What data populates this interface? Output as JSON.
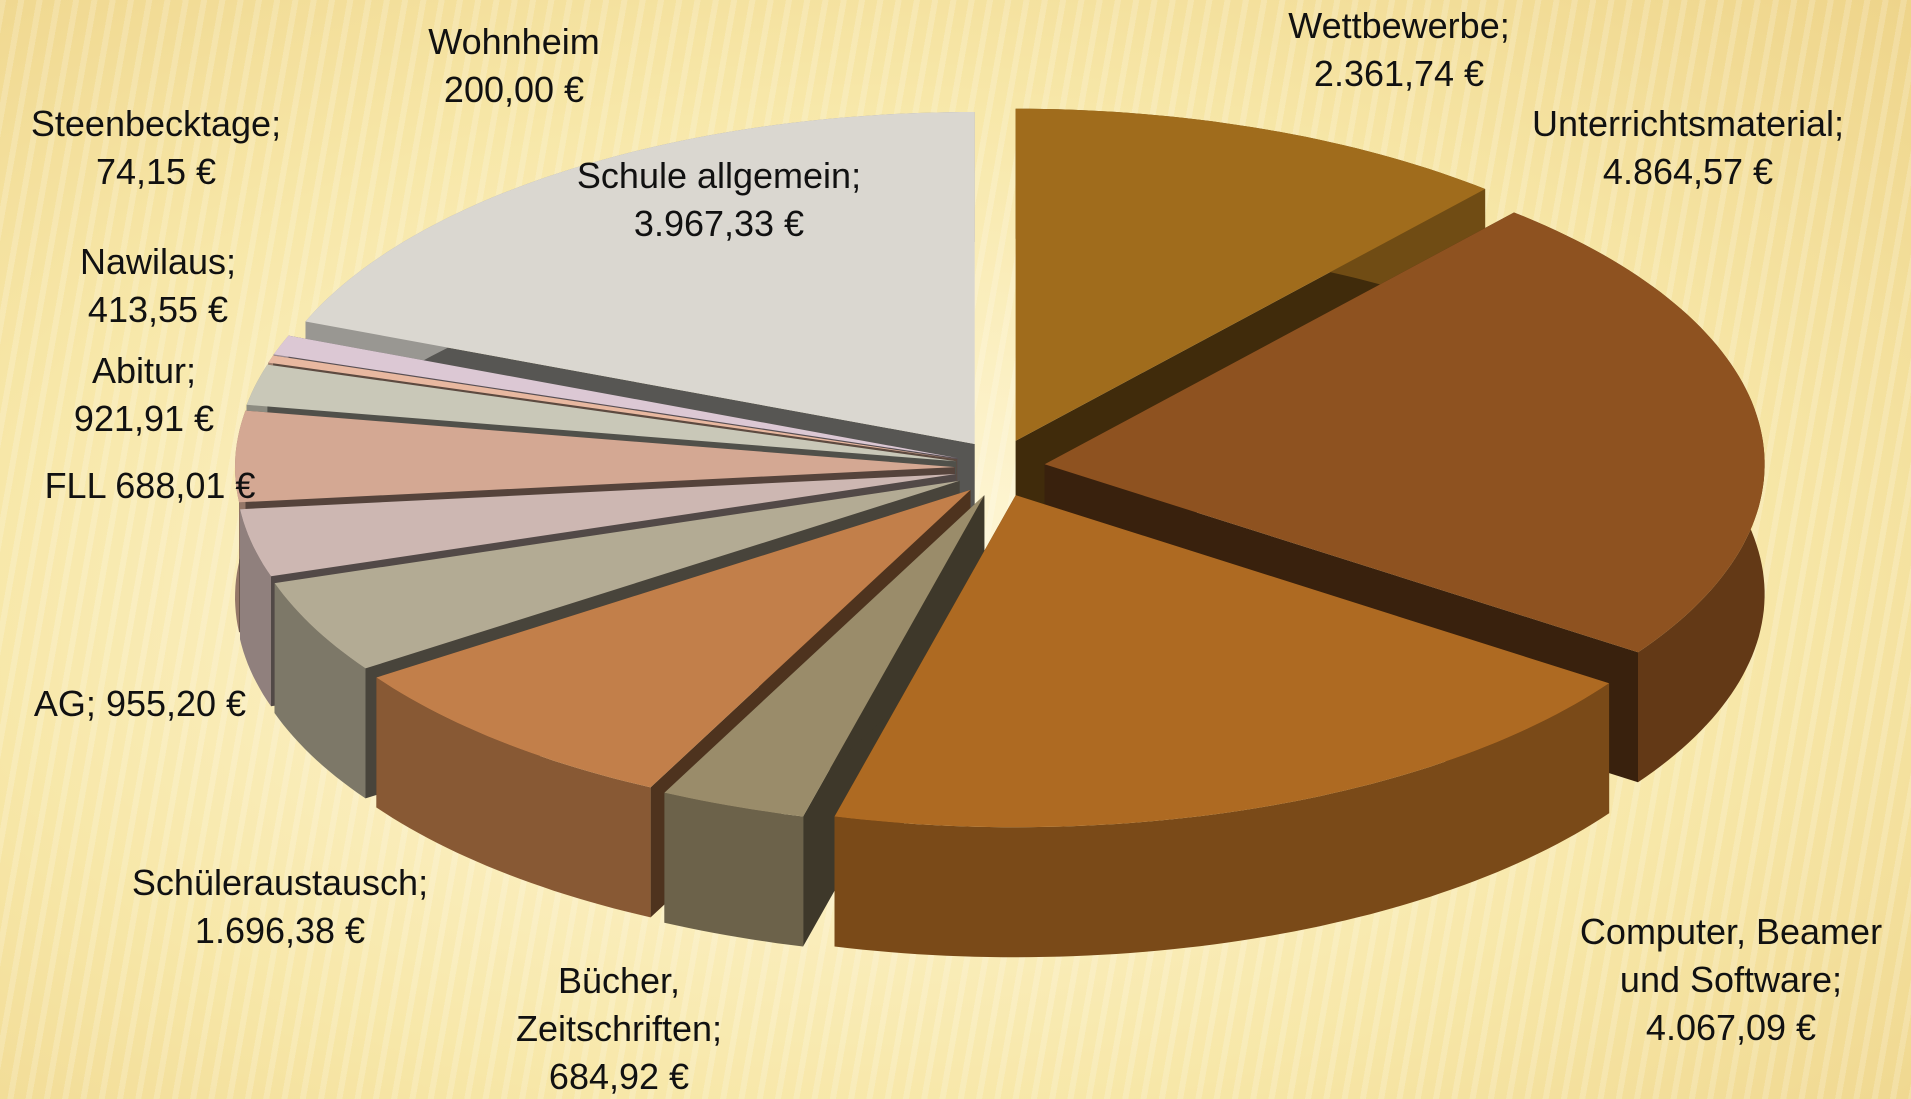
{
  "chart_data": {
    "type": "pie",
    "categories": [
      "Wettbewerbe;",
      "Unterrichtsmaterial;",
      "Computer, Beamer und Software;",
      "Bücher, Zeitschriften;",
      "Schüleraustausch;",
      "AG;",
      "FLL",
      "Abitur;",
      "Nawilaus;",
      "Steenbecktage;",
      "Wohnheim",
      "Schule allgemein;"
    ],
    "values": [
      2361.74,
      4864.57,
      4067.09,
      684.92,
      1696.38,
      955.2,
      688.01,
      921.91,
      413.55,
      74.15,
      200.0,
      3967.33
    ],
    "value_labels": [
      "2.361,74 €",
      "4.864,57 €",
      "4.067,09 €",
      "684,92 €",
      "1.696,38 €",
      "955,20 €",
      "688,01 €",
      "921,91 €",
      "413,55 €",
      "74,15 €",
      "200,00 €",
      "3.967,33 €"
    ],
    "colors": [
      "#a06c1c",
      "#8e5220",
      "#ae6a22",
      "#9a8c6a",
      "#c27f4a",
      "#b3ab94",
      "#cdb7b2",
      "#d4a893",
      "#c9c8b8",
      "#e8b8a0",
      "#dcc8d4",
      "#dad7d0"
    ]
  }
}
